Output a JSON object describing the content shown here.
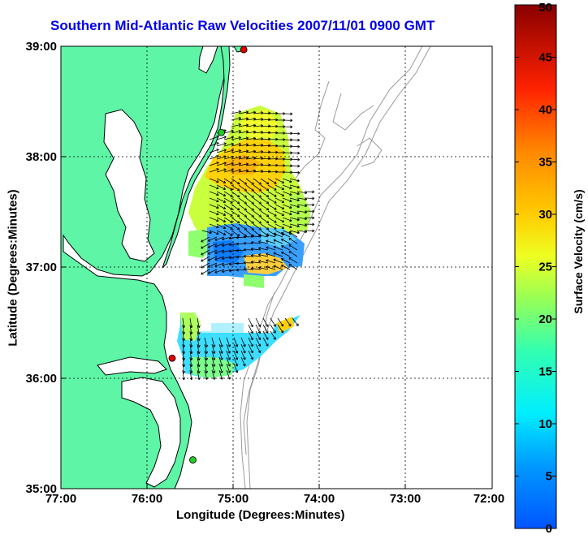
{
  "title": "Southern Mid-Atlantic Raw Velocities 2007/11/01 0900 GMT",
  "xlabel": "Longitude (Degrees:Minutes)",
  "ylabel": "Latitude (Degrees:Minutes)",
  "x_ticks": [
    "77:00",
    "76:00",
    "75:00",
    "74:00",
    "73:00",
    "72:00"
  ],
  "y_ticks": [
    "39:00",
    "38:00",
    "37:00",
    "36:00",
    "35:00"
  ],
  "colorbar": {
    "label": "Surface Velocity (cm/s)",
    "min": 0,
    "max": 50,
    "ticks": [
      "0",
      "5",
      "10",
      "15",
      "20",
      "25",
      "30",
      "35",
      "40",
      "45",
      "50"
    ]
  },
  "colors": {
    "land": "#5ef5a6",
    "coast": "#000000",
    "bathymetry": "#9a9a9a",
    "title": "#0000ee",
    "site_red": "#e00000",
    "site_green": "#22cc22"
  },
  "chart_data": {
    "type": "heatmap",
    "xlim": [
      -77.0,
      -72.0
    ],
    "ylim": [
      35.0,
      39.0
    ],
    "grid": true,
    "sites": [
      {
        "lon": -74.88,
        "lat": 38.97,
        "color": "red"
      },
      {
        "lon": -75.14,
        "lat": 38.22,
        "color": "green"
      },
      {
        "lon": -75.71,
        "lat": 36.18,
        "color": "red"
      },
      {
        "lon": -75.47,
        "lat": 35.26,
        "color": "green"
      }
    ]
  }
}
